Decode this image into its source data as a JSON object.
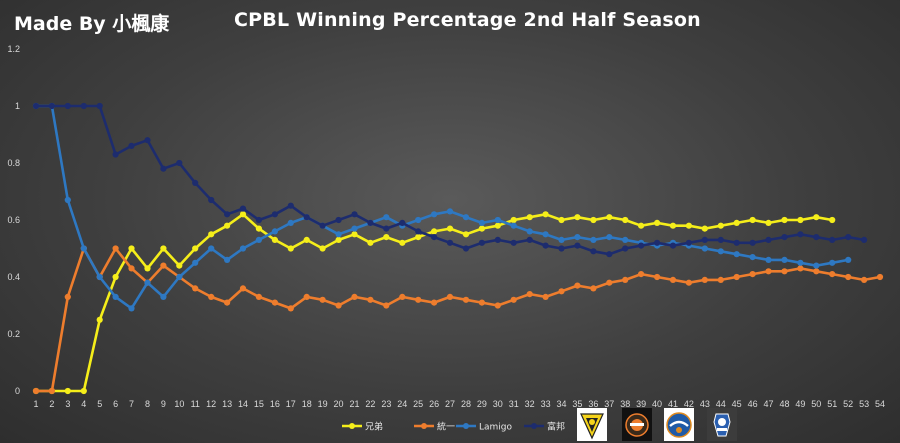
{
  "credit": "Made By 小楓康",
  "chart_data": {
    "type": "line",
    "title": "CPBL Winning Percentage 2nd Half Season",
    "xlabel": "",
    "ylabel": "",
    "ylim": [
      0,
      1.2
    ],
    "yticks": [
      "0",
      "0.2",
      "0.4",
      "0.6",
      "0.8",
      "1",
      "1.2"
    ],
    "xlim": [
      1,
      54
    ],
    "x": [
      1,
      2,
      3,
      4,
      5,
      6,
      7,
      8,
      9,
      10,
      11,
      12,
      13,
      14,
      15,
      16,
      17,
      18,
      19,
      20,
      21,
      22,
      23,
      24,
      25,
      26,
      27,
      28,
      29,
      30,
      31,
      32,
      33,
      34,
      35,
      36,
      37,
      38,
      39,
      40,
      41,
      42,
      43,
      44,
      45,
      46,
      47,
      48,
      49,
      50,
      51,
      52,
      53,
      54
    ],
    "grid": false,
    "legend_position": "bottom",
    "series": [
      {
        "name": "兄弟",
        "color": "#f5ee1a",
        "x": [
          1,
          2,
          3,
          4,
          5,
          6,
          7,
          8,
          9,
          10,
          11,
          12,
          13,
          14,
          15,
          16,
          17,
          18,
          19,
          20,
          21,
          22,
          23,
          24,
          25,
          26,
          27,
          28,
          29,
          30,
          31,
          32,
          33,
          34,
          35,
          36,
          37,
          38,
          39,
          40,
          41,
          42,
          43,
          44,
          45,
          46,
          47,
          48,
          49,
          50,
          51
        ],
        "values": [
          0,
          0,
          0,
          0,
          0.25,
          0.4,
          0.5,
          0.43,
          0.5,
          0.44,
          0.5,
          0.55,
          0.58,
          0.62,
          0.57,
          0.53,
          0.5,
          0.53,
          0.5,
          0.53,
          0.55,
          0.52,
          0.54,
          0.52,
          0.54,
          0.56,
          0.57,
          0.55,
          0.57,
          0.58,
          0.6,
          0.61,
          0.62,
          0.6,
          0.61,
          0.6,
          0.61,
          0.6,
          0.58,
          0.59,
          0.58,
          0.58,
          0.57,
          0.58,
          0.59,
          0.6,
          0.59,
          0.6,
          0.6,
          0.61,
          0.6
        ]
      },
      {
        "name": "統一",
        "color": "#ee7d2d",
        "x": [
          1,
          2,
          3,
          4,
          5,
          6,
          7,
          8,
          9,
          10,
          11,
          12,
          13,
          14,
          15,
          16,
          17,
          18,
          19,
          20,
          21,
          22,
          23,
          24,
          25,
          26,
          27,
          28,
          29,
          30,
          31,
          32,
          33,
          34,
          35,
          36,
          37,
          38,
          39,
          40,
          41,
          42,
          43,
          44,
          45,
          46,
          47,
          48,
          49,
          50,
          51,
          52,
          53,
          54
        ],
        "values": [
          0,
          0,
          0.33,
          0.5,
          0.4,
          0.5,
          0.43,
          0.38,
          0.44,
          0.4,
          0.36,
          0.33,
          0.31,
          0.36,
          0.33,
          0.31,
          0.29,
          0.33,
          0.32,
          0.3,
          0.33,
          0.32,
          0.3,
          0.33,
          0.32,
          0.31,
          0.33,
          0.32,
          0.31,
          0.3,
          0.32,
          0.34,
          0.33,
          0.35,
          0.37,
          0.36,
          0.38,
          0.39,
          0.41,
          0.4,
          0.39,
          0.38,
          0.39,
          0.39,
          0.4,
          0.41,
          0.42,
          0.42,
          0.43,
          0.42,
          0.41,
          0.4,
          0.39,
          0.4
        ]
      },
      {
        "name": "Lamigo",
        "color": "#2e78c2",
        "x": [
          1,
          2,
          3,
          4,
          5,
          6,
          7,
          8,
          9,
          10,
          11,
          12,
          13,
          14,
          15,
          16,
          17,
          18,
          19,
          20,
          21,
          22,
          23,
          24,
          25,
          26,
          27,
          28,
          29,
          30,
          31,
          32,
          33,
          34,
          35,
          36,
          37,
          38,
          39,
          40,
          41,
          42,
          43,
          44,
          45,
          46,
          47,
          48,
          49,
          50,
          51,
          52
        ],
        "values": [
          1,
          1,
          0.67,
          0.5,
          0.4,
          0.33,
          0.29,
          0.38,
          0.33,
          0.4,
          0.45,
          0.5,
          0.46,
          0.5,
          0.53,
          0.56,
          0.59,
          0.61,
          0.58,
          0.55,
          0.57,
          0.59,
          0.61,
          0.58,
          0.6,
          0.62,
          0.63,
          0.61,
          0.59,
          0.6,
          0.58,
          0.56,
          0.55,
          0.53,
          0.54,
          0.53,
          0.54,
          0.53,
          0.52,
          0.51,
          0.52,
          0.51,
          0.5,
          0.49,
          0.48,
          0.47,
          0.46,
          0.46,
          0.45,
          0.44,
          0.45,
          0.46
        ]
      },
      {
        "name": "富邦",
        "color": "#1d2c6e",
        "x": [
          1,
          2,
          3,
          4,
          5,
          6,
          7,
          8,
          9,
          10,
          11,
          12,
          13,
          14,
          15,
          16,
          17,
          18,
          19,
          20,
          21,
          22,
          23,
          24,
          25,
          26,
          27,
          28,
          29,
          30,
          31,
          32,
          33,
          34,
          35,
          36,
          37,
          38,
          39,
          40,
          41,
          42,
          43,
          44,
          45,
          46,
          47,
          48,
          49,
          50,
          51,
          52,
          53
        ],
        "values": [
          1,
          1,
          1,
          1,
          1,
          0.83,
          0.86,
          0.88,
          0.78,
          0.8,
          0.73,
          0.67,
          0.62,
          0.64,
          0.6,
          0.62,
          0.65,
          0.61,
          0.58,
          0.6,
          0.62,
          0.59,
          0.57,
          0.59,
          0.56,
          0.54,
          0.52,
          0.5,
          0.52,
          0.53,
          0.52,
          0.53,
          0.51,
          0.5,
          0.51,
          0.49,
          0.48,
          0.5,
          0.51,
          0.52,
          0.51,
          0.52,
          0.53,
          0.53,
          0.52,
          0.52,
          0.53,
          0.54,
          0.55,
          0.54,
          0.53,
          0.54,
          0.53
        ]
      }
    ]
  },
  "logos": [
    {
      "name": "brothers-logo",
      "color": "#f5ee1a"
    },
    {
      "name": "lions-logo",
      "color": "#ee7d2d"
    },
    {
      "name": "lamigo-logo",
      "color": "#2e78c2"
    },
    {
      "name": "fubon-logo",
      "color": "#1d2c6e"
    }
  ]
}
